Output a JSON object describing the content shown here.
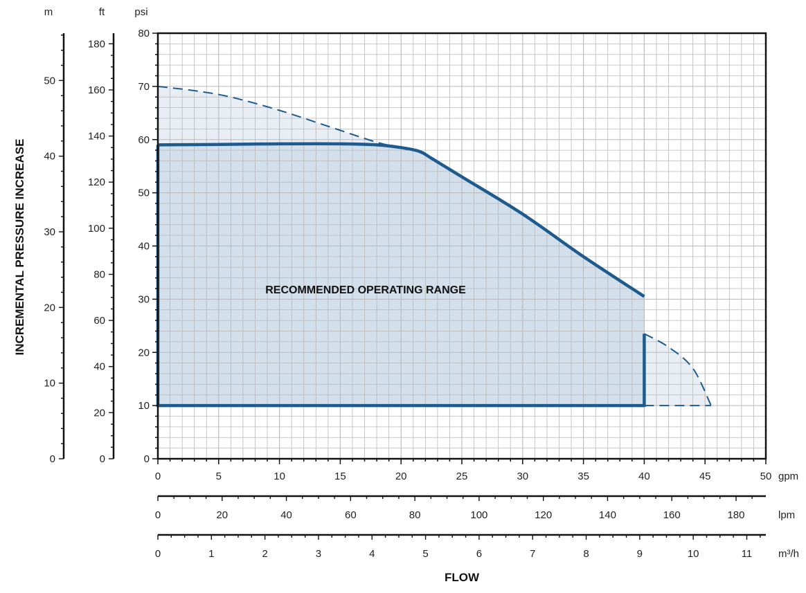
{
  "chart_data": {
    "type": "area",
    "title": "",
    "x_axes": [
      {
        "unit": "gpm",
        "min": 0,
        "max": 50,
        "ticks": [
          0,
          5,
          10,
          15,
          20,
          25,
          30,
          35,
          40,
          45,
          50
        ]
      },
      {
        "unit": "lpm",
        "min": 0,
        "max": 189.27,
        "ticks": [
          0,
          20,
          40,
          60,
          80,
          100,
          120,
          140,
          160,
          180
        ]
      },
      {
        "unit": "m³/h",
        "min": 0,
        "max": 11.356,
        "ticks": [
          0,
          1,
          2,
          3,
          4,
          5,
          6,
          7,
          8,
          9,
          10,
          11
        ]
      }
    ],
    "y_axes": [
      {
        "unit": "psi",
        "min": 0,
        "max": 80,
        "ticks": [
          0,
          10,
          20,
          30,
          40,
          50,
          60,
          70,
          80
        ]
      },
      {
        "unit": "ft",
        "min": 0,
        "max": 184.6,
        "ticks": [
          0,
          20,
          40,
          60,
          80,
          100,
          120,
          140,
          160,
          180
        ]
      },
      {
        "unit": "m",
        "min": 0,
        "max": 56.25,
        "ticks": [
          0,
          10,
          20,
          30,
          40,
          50
        ]
      }
    ],
    "xlabel": "FLOW",
    "ylabel": "INCREMENTAL PRESSURE INCREASE",
    "grid": true,
    "series": [
      {
        "style": "solid",
        "points_gpm_psi": [
          [
            0,
            59
          ],
          [
            5,
            59.1
          ],
          [
            10,
            59.2
          ],
          [
            15,
            59.2
          ],
          [
            18,
            59
          ],
          [
            20,
            58.5
          ],
          [
            21.5,
            57.8
          ],
          [
            22.5,
            56.5
          ],
          [
            25,
            53
          ],
          [
            30,
            46
          ],
          [
            35,
            38
          ],
          [
            40,
            30.5
          ]
        ]
      },
      {
        "style": "dashed",
        "points_gpm_psi": [
          [
            0,
            70
          ],
          [
            3,
            69.2
          ],
          [
            6,
            68
          ],
          [
            10,
            65.5
          ],
          [
            14,
            62.5
          ],
          [
            18,
            59.5
          ],
          [
            20,
            58.5
          ]
        ]
      },
      {
        "style": "dashed",
        "points_gpm_psi": [
          [
            40,
            23.5
          ],
          [
            42,
            21
          ],
          [
            44,
            17
          ],
          [
            45.5,
            10
          ]
        ]
      }
    ],
    "recommended_region_gpm_psi": {
      "left": 0,
      "right": 40,
      "bottom": 10,
      "top_at_right": 23.5
    },
    "annotation": "RECOMMENDED OPERATING RANGE",
    "colors": {
      "line": "#1d5a8e",
      "fill_inner": "#d4dfec",
      "fill_outer": "#e9eef5",
      "grid": "#b8b8b8"
    }
  }
}
